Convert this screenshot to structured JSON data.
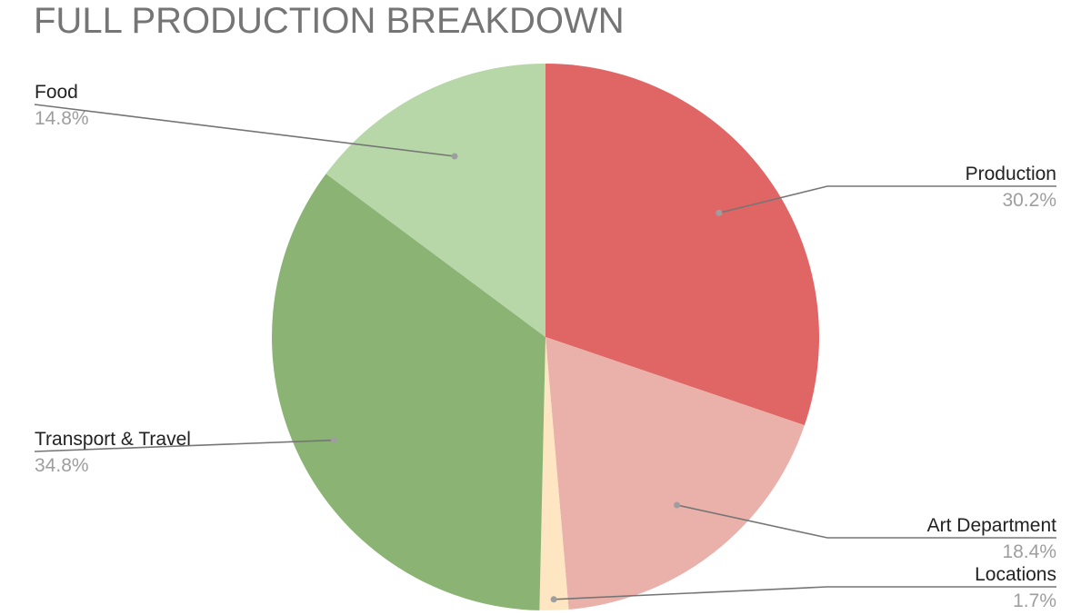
{
  "chart_data": {
    "type": "pie",
    "title": "FULL PRODUCTION BREAKDOWN",
    "slices": [
      {
        "label": "Production",
        "value": 30.2,
        "percent_label": "30.2%",
        "color": "#e06666"
      },
      {
        "label": "Art Department",
        "value": 18.4,
        "percent_label": "18.4%",
        "color": "#eab1ab"
      },
      {
        "label": "Locations",
        "value": 1.7,
        "percent_label": "1.7%",
        "color": "#ffe6c2"
      },
      {
        "label": "Transport & Travel",
        "value": 34.8,
        "percent_label": "34.8%",
        "color": "#8ab374"
      },
      {
        "label": "Food",
        "value": 14.8,
        "percent_label": "14.8%",
        "color": "#b7d7a8"
      }
    ],
    "start": "12 o'clock",
    "direction": "clockwise",
    "legend": "none"
  }
}
